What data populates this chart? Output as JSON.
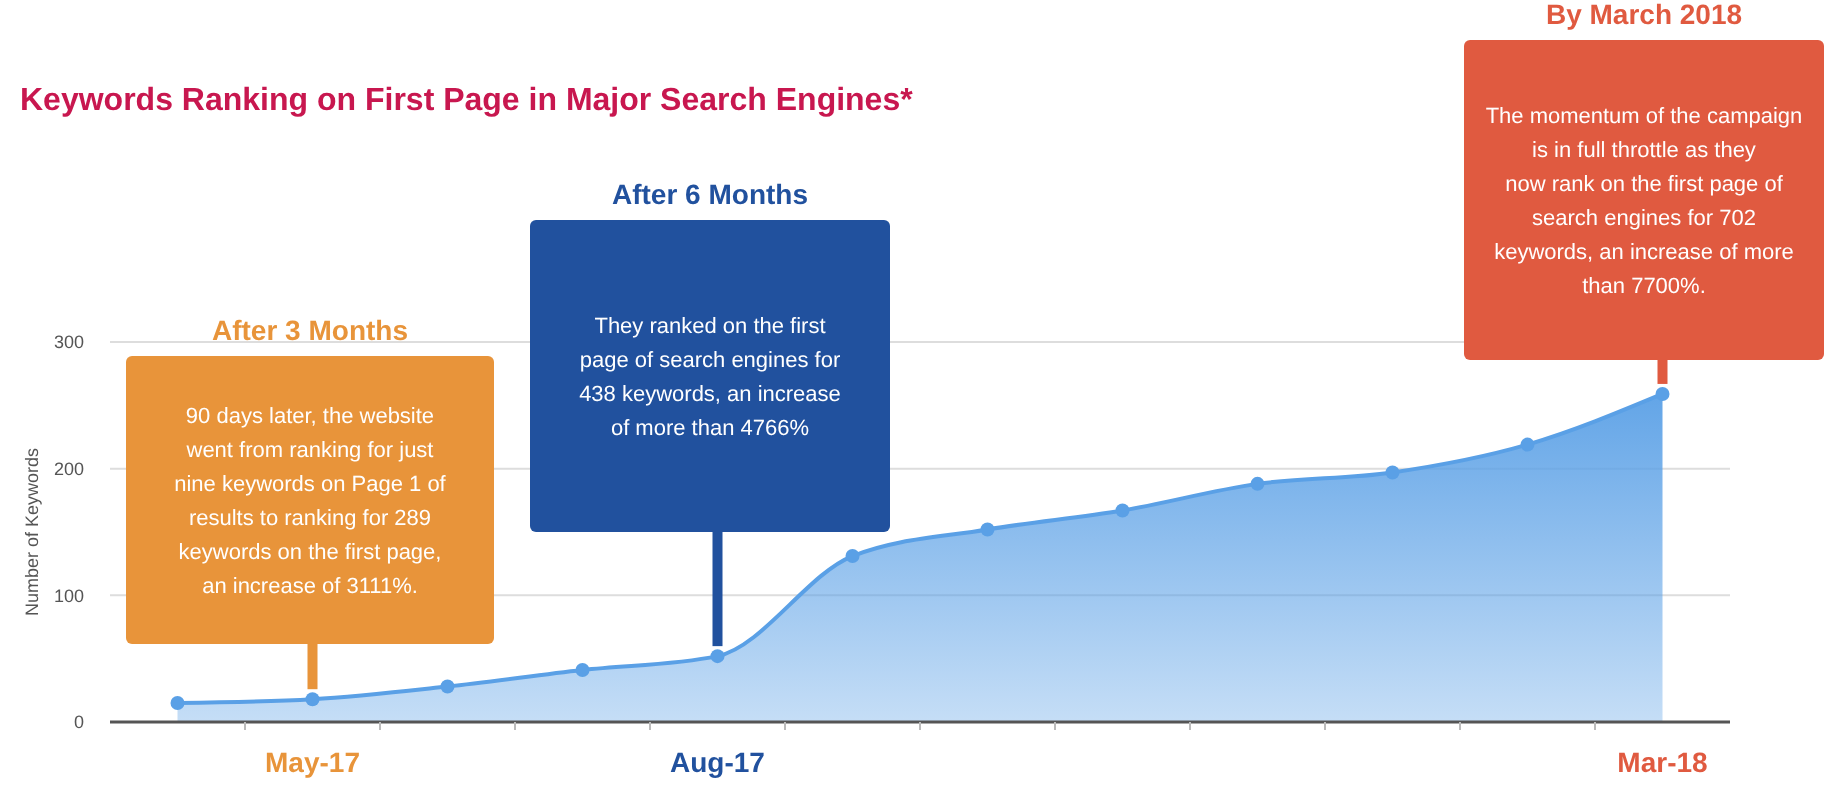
{
  "chart_data": {
    "type": "area",
    "title": "Keywords Ranking on First Page in Major Search Engines*",
    "ylabel": "Number of Keywords",
    "categories": [
      null,
      "May-17",
      null,
      null,
      "Aug-17",
      null,
      null,
      null,
      null,
      null,
      null,
      "Mar-18"
    ],
    "series": [
      {
        "color": "#5aa0e6",
        "values": [
          15,
          18,
          28,
          41,
          52,
          131,
          152,
          167,
          188,
          197,
          219,
          259
        ]
      }
    ],
    "ylim": [
      0,
      300
    ],
    "yticks": [
      0,
      100,
      200,
      300
    ],
    "grid": "y",
    "marker": "circle",
    "annotations": [
      "After 3 Months",
      "90 days later, the website went from ranking for just nine keywords on Page 1 of results to ranking for 289 keywords on the first page, an increase of 3111%.",
      "After 6 Months",
      "They ranked on the first page of search engines for 438 keywords, an increase of more than 4766%",
      "By March 2018",
      "The momentum of the campaign is in full throttle as they now rank on the first page of search engines for 702 keywords, an increase of more than 7700%."
    ]
  }
}
